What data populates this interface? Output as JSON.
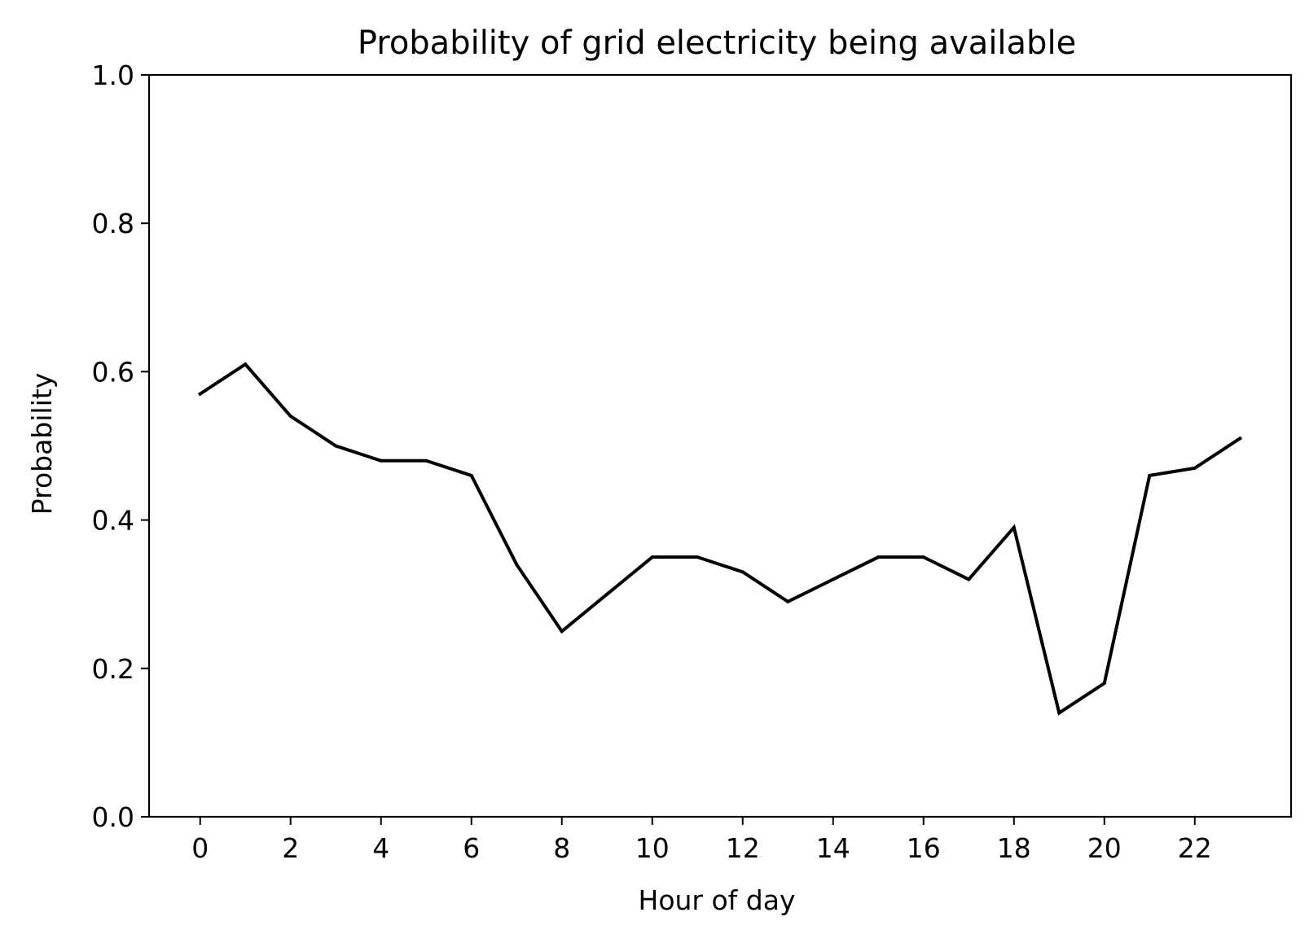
{
  "chart_data": {
    "type": "line",
    "title": "Probability of grid electricity being available",
    "xlabel": "Hour of day",
    "ylabel": "Probability",
    "xlim": [
      -1.13,
      24.13
    ],
    "ylim": [
      0.0,
      1.0
    ],
    "x_ticks": [
      0,
      2,
      4,
      6,
      8,
      10,
      12,
      14,
      16,
      18,
      20,
      22
    ],
    "x_tick_labels": [
      "0",
      "2",
      "4",
      "6",
      "8",
      "10",
      "12",
      "14",
      "16",
      "18",
      "20",
      "22"
    ],
    "y_ticks": [
      0.0,
      0.2,
      0.4,
      0.6,
      0.8,
      1.0
    ],
    "y_tick_labels": [
      "0.0",
      "0.2",
      "0.4",
      "0.6",
      "0.8",
      "1.0"
    ],
    "grid": false,
    "line_color": "#000000",
    "x": [
      0,
      1,
      2,
      3,
      4,
      5,
      6,
      7,
      8,
      9,
      10,
      11,
      12,
      13,
      14,
      15,
      16,
      17,
      18,
      19,
      20,
      21,
      22,
      23
    ],
    "series": [
      {
        "values": [
          0.57,
          0.61,
          0.54,
          0.5,
          0.48,
          0.48,
          0.46,
          0.34,
          0.25,
          0.3,
          0.35,
          0.35,
          0.33,
          0.29,
          0.32,
          0.35,
          0.35,
          0.32,
          0.39,
          0.14,
          0.18,
          0.46,
          0.47,
          0.51
        ]
      }
    ]
  }
}
